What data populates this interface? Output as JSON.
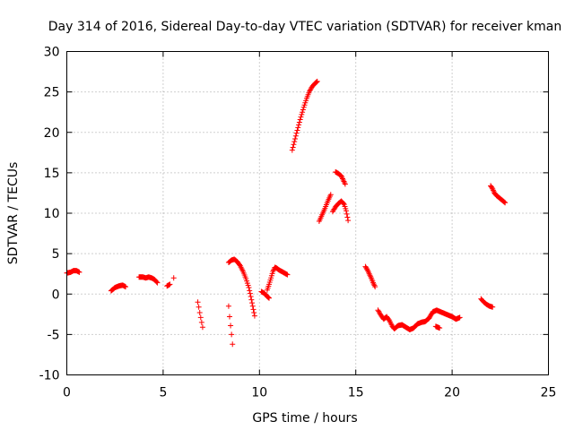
{
  "chart_data": {
    "type": "scatter",
    "title": "Day 314 of 2016, Sidereal Day-to-day VTEC variation (SDTVAR) for receiver kman",
    "xlabel": "GPS time / hours",
    "ylabel": "SDTVAR / TECUs",
    "xlim": [
      0,
      25
    ],
    "ylim": [
      -10,
      30
    ],
    "xticks": [
      0,
      5,
      10,
      15,
      20,
      25
    ],
    "xtick_labels": [
      "0",
      "5",
      "10",
      "15",
      "20",
      "25"
    ],
    "yticks": [
      -10,
      -5,
      0,
      5,
      10,
      15,
      20,
      25,
      30
    ],
    "ytick_labels": [
      "-10",
      "-5",
      "0",
      "5",
      "10",
      "15",
      "20",
      "25",
      "30"
    ],
    "grid": true,
    "marker": "+",
    "color": "#ff0000",
    "segments": [
      [
        [
          0.0,
          2.6
        ],
        [
          0.2,
          2.7
        ],
        [
          0.35,
          2.9
        ],
        [
          0.5,
          2.9
        ],
        [
          0.65,
          2.7
        ]
      ],
      [
        [
          2.3,
          0.4
        ],
        [
          2.5,
          0.8
        ],
        [
          2.7,
          1.0
        ],
        [
          2.9,
          1.1
        ],
        [
          3.05,
          0.9
        ]
      ],
      [
        [
          3.75,
          2.1
        ],
        [
          3.95,
          2.1
        ],
        [
          4.1,
          2.0
        ],
        [
          4.25,
          2.1
        ],
        [
          4.4,
          2.0
        ],
        [
          4.55,
          1.8
        ],
        [
          4.7,
          1.4
        ]
      ],
      [
        [
          5.2,
          1.0
        ],
        [
          5.35,
          1.2
        ]
      ],
      [
        [
          5.55,
          2.0
        ]
      ],
      [
        [
          6.8,
          -1.0
        ],
        [
          6.85,
          -1.6
        ],
        [
          6.9,
          -2.3
        ],
        [
          6.95,
          -2.9
        ],
        [
          7.0,
          -3.5
        ],
        [
          7.05,
          -4.1
        ]
      ],
      [
        [
          8.4,
          -1.5
        ],
        [
          8.45,
          -2.8
        ],
        [
          8.5,
          -3.9
        ],
        [
          8.55,
          -5.0
        ],
        [
          8.6,
          -6.2
        ]
      ],
      [
        [
          8.4,
          3.9
        ],
        [
          8.55,
          4.2
        ],
        [
          8.7,
          4.3
        ],
        [
          8.85,
          4.0
        ],
        [
          9.0,
          3.5
        ],
        [
          9.15,
          2.8
        ],
        [
          9.3,
          1.9
        ],
        [
          9.45,
          0.8
        ],
        [
          9.55,
          -0.3
        ],
        [
          9.65,
          -1.5
        ],
        [
          9.75,
          -2.7
        ]
      ],
      [
        [
          10.1,
          0.3
        ],
        [
          10.25,
          0.1
        ],
        [
          10.4,
          -0.3
        ],
        [
          10.5,
          -0.5
        ]
      ],
      [
        [
          10.4,
          0.5
        ],
        [
          10.5,
          1.2
        ],
        [
          10.6,
          2.0
        ],
        [
          10.7,
          2.8
        ],
        [
          10.8,
          3.3
        ],
        [
          10.9,
          3.2
        ],
        [
          11.0,
          3.0
        ],
        [
          11.15,
          2.8
        ],
        [
          11.3,
          2.6
        ],
        [
          11.45,
          2.4
        ]
      ],
      [
        [
          11.7,
          17.8
        ],
        [
          11.85,
          19.2
        ],
        [
          12.0,
          20.6
        ],
        [
          12.15,
          21.9
        ],
        [
          12.3,
          23.1
        ],
        [
          12.45,
          24.2
        ],
        [
          12.6,
          25.1
        ],
        [
          12.75,
          25.7
        ],
        [
          12.9,
          26.1
        ],
        [
          13.0,
          26.3
        ]
      ],
      [
        [
          13.1,
          9.0
        ],
        [
          13.25,
          9.8
        ],
        [
          13.4,
          10.6
        ],
        [
          13.55,
          11.5
        ],
        [
          13.7,
          12.3
        ]
      ],
      [
        [
          13.8,
          10.2
        ],
        [
          13.95,
          10.8
        ],
        [
          14.1,
          11.2
        ],
        [
          14.25,
          11.5
        ],
        [
          14.4,
          11.1
        ],
        [
          14.5,
          10.3
        ],
        [
          14.6,
          9.1
        ]
      ],
      [
        [
          13.95,
          15.1
        ],
        [
          14.1,
          14.9
        ],
        [
          14.25,
          14.6
        ],
        [
          14.35,
          14.1
        ],
        [
          14.45,
          13.6
        ]
      ],
      [
        [
          15.5,
          3.4
        ],
        [
          15.6,
          3.0
        ],
        [
          15.7,
          2.5
        ],
        [
          15.8,
          2.0
        ],
        [
          15.9,
          1.4
        ],
        [
          16.0,
          0.9
        ]
      ],
      [
        [
          16.15,
          -2.0
        ],
        [
          16.3,
          -2.6
        ],
        [
          16.45,
          -3.1
        ],
        [
          16.6,
          -2.8
        ],
        [
          16.75,
          -3.3
        ],
        [
          16.9,
          -4.0
        ],
        [
          17.0,
          -4.3
        ],
        [
          17.2,
          -3.9
        ],
        [
          17.4,
          -3.8
        ],
        [
          17.6,
          -4.1
        ],
        [
          17.8,
          -4.4
        ],
        [
          18.0,
          -4.2
        ],
        [
          18.2,
          -3.7
        ],
        [
          18.4,
          -3.5
        ],
        [
          18.6,
          -3.4
        ],
        [
          18.8,
          -3.0
        ],
        [
          19.0,
          -2.2
        ],
        [
          19.2,
          -2.0
        ],
        [
          19.4,
          -2.2
        ],
        [
          19.6,
          -2.4
        ],
        [
          19.8,
          -2.6
        ],
        [
          20.0,
          -2.8
        ],
        [
          20.2,
          -3.1
        ],
        [
          20.4,
          -2.9
        ]
      ],
      [
        [
          19.15,
          -4.0
        ],
        [
          19.35,
          -4.2
        ]
      ],
      [
        [
          21.5,
          -0.6
        ],
        [
          21.65,
          -1.0
        ],
        [
          21.8,
          -1.3
        ],
        [
          21.95,
          -1.5
        ],
        [
          22.1,
          -1.6
        ]
      ],
      [
        [
          22.0,
          13.4
        ],
        [
          22.1,
          13.0
        ],
        [
          22.2,
          12.5
        ],
        [
          22.3,
          12.2
        ],
        [
          22.45,
          11.9
        ],
        [
          22.6,
          11.6
        ],
        [
          22.75,
          11.3
        ]
      ]
    ]
  }
}
